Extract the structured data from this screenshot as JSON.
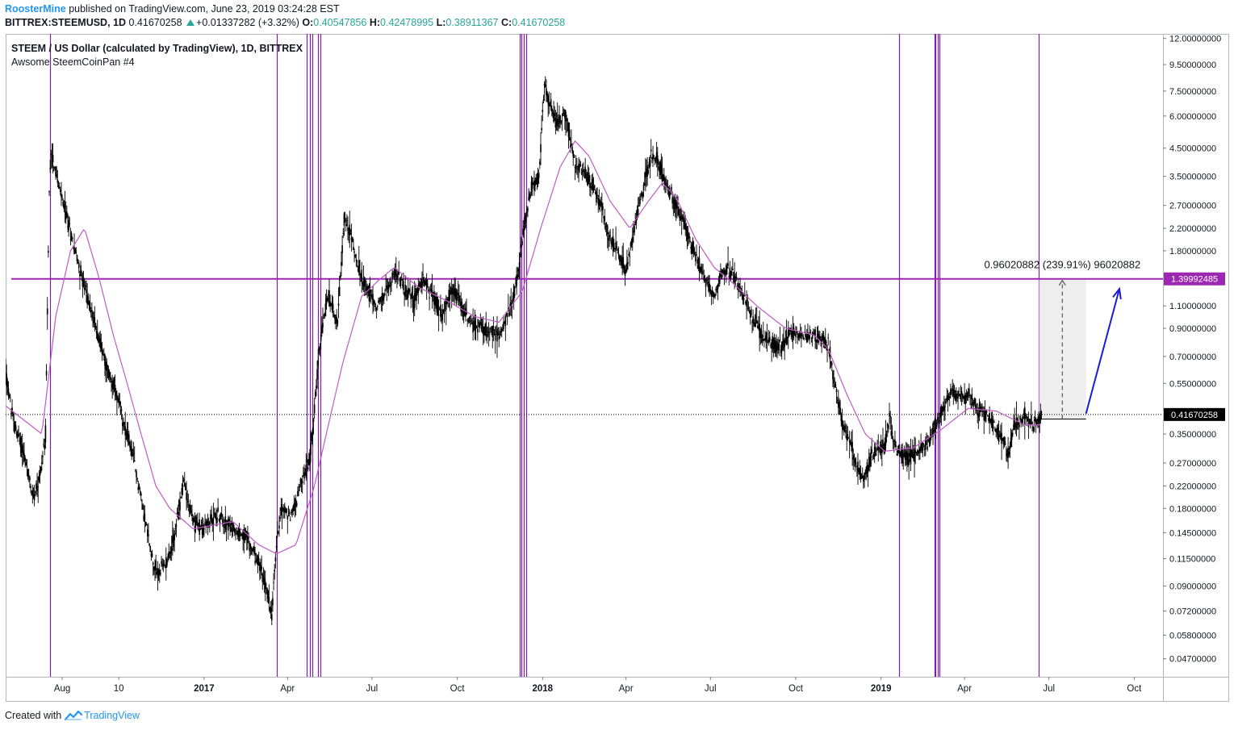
{
  "header": {
    "author": "RoosterMine",
    "published": "published on TradingView.com, June 23, 2019 03:24:28 EST",
    "symbol": "BITTREX:STEEMUSD, 1D",
    "price": "0.41670258",
    "change": "+0.01337282 (+3.32%)",
    "o_label": "O:",
    "o_value": "0.40547856",
    "h_label": "H:",
    "h_value": "0.42478995",
    "l_label": "L:",
    "l_value": "0.38911367",
    "c_label": "C:",
    "c_value": "0.41670258"
  },
  "footer": {
    "created_with": "Created with",
    "brand": "TradingView",
    "logo_icon": "tradingview-logo-icon"
  },
  "colors": {
    "candle": "#000000",
    "ma": "#c25ac7",
    "vline": "#7b1fa2",
    "hline": "#9c27b0",
    "arrow": "#1a1ad8",
    "current": "#000000"
  },
  "chart_data": {
    "type": "candlestick",
    "title": "STEEM / US Dollar (calculated by TradingView), 1D, BITTREX",
    "subtitle": "Awsome SteemCoinPan #4",
    "y_scale": "log",
    "ylim": [
      0.04,
      12.5
    ],
    "xlim": [
      "2016-06-01",
      "2019-11-01"
    ],
    "y_ticks": [
      {
        "value": 12.0,
        "label": "12.00000000"
      },
      {
        "value": 9.5,
        "label": "9.50000000"
      },
      {
        "value": 7.5,
        "label": "7.50000000"
      },
      {
        "value": 6.0,
        "label": "6.00000000"
      },
      {
        "value": 4.5,
        "label": "4.50000000"
      },
      {
        "value": 3.5,
        "label": "3.50000000"
      },
      {
        "value": 2.7,
        "label": "2.70000000"
      },
      {
        "value": 2.2,
        "label": "2.20000000"
      },
      {
        "value": 1.8,
        "label": "1.80000000"
      },
      {
        "value": 1.1,
        "label": "1.10000000"
      },
      {
        "value": 0.9,
        "label": "0.90000000"
      },
      {
        "value": 0.7,
        "label": "0.70000000"
      },
      {
        "value": 0.55,
        "label": "0.55000000"
      },
      {
        "value": 0.35,
        "label": "0.35000000"
      },
      {
        "value": 0.27,
        "label": "0.27000000"
      },
      {
        "value": 0.22,
        "label": "0.22000000"
      },
      {
        "value": 0.18,
        "label": "0.18000000"
      },
      {
        "value": 0.145,
        "label": "0.14500000"
      },
      {
        "value": 0.115,
        "label": "0.11500000"
      },
      {
        "value": 0.09,
        "label": "0.09000000"
      },
      {
        "value": 0.072,
        "label": "0.07200000"
      },
      {
        "value": 0.058,
        "label": "0.05800000"
      },
      {
        "value": 0.047,
        "label": "0.04700000"
      }
    ],
    "x_ticks": [
      {
        "date": "2016-08-01",
        "label": "Aug",
        "bold": false
      },
      {
        "date": "2016-10-01",
        "label": "10",
        "bold": false
      },
      {
        "date": "2017-01-01",
        "label": "2017",
        "bold": true
      },
      {
        "date": "2017-04-01",
        "label": "Apr",
        "bold": false
      },
      {
        "date": "2017-07-01",
        "label": "Jul",
        "bold": false
      },
      {
        "date": "2017-10-01",
        "label": "Oct",
        "bold": false
      },
      {
        "date": "2018-01-01",
        "label": "2018",
        "bold": true
      },
      {
        "date": "2018-04-01",
        "label": "Apr",
        "bold": false
      },
      {
        "date": "2018-07-01",
        "label": "Jul",
        "bold": false
      },
      {
        "date": "2018-10-01",
        "label": "Oct",
        "bold": false
      },
      {
        "date": "2019-01-01",
        "label": "2019",
        "bold": true
      },
      {
        "date": "2019-04-01",
        "label": "Apr",
        "bold": false
      },
      {
        "date": "2019-07-01",
        "label": "Jul",
        "bold": false
      },
      {
        "date": "2019-10-01",
        "label": "Oct",
        "bold": false
      }
    ],
    "price_path": [
      {
        "date": "2016-06-01",
        "value": 0.6
      },
      {
        "date": "2016-06-10",
        "value": 0.38
      },
      {
        "date": "2016-06-20",
        "value": 0.3
      },
      {
        "date": "2016-06-30",
        "value": 0.2
      },
      {
        "date": "2016-07-08",
        "value": 0.24
      },
      {
        "date": "2016-07-14",
        "value": 0.35
      },
      {
        "date": "2016-07-18",
        "value": 3.0
      },
      {
        "date": "2016-07-20",
        "value": 4.5
      },
      {
        "date": "2016-07-28",
        "value": 3.2
      },
      {
        "date": "2016-08-05",
        "value": 2.5
      },
      {
        "date": "2016-08-15",
        "value": 1.8
      },
      {
        "date": "2016-08-25",
        "value": 1.3
      },
      {
        "date": "2016-09-05",
        "value": 0.95
      },
      {
        "date": "2016-09-20",
        "value": 0.6
      },
      {
        "date": "2016-09-25",
        "value": 0.55
      },
      {
        "date": "2016-10-05",
        "value": 0.4
      },
      {
        "date": "2016-10-15",
        "value": 0.3
      },
      {
        "date": "2016-10-25",
        "value": 0.2
      },
      {
        "date": "2016-11-05",
        "value": 0.12
      },
      {
        "date": "2016-11-12",
        "value": 0.1
      },
      {
        "date": "2016-11-20",
        "value": 0.11
      },
      {
        "date": "2016-11-28",
        "value": 0.13
      },
      {
        "date": "2016-12-05",
        "value": 0.18
      },
      {
        "date": "2016-12-10",
        "value": 0.23
      },
      {
        "date": "2016-12-20",
        "value": 0.16
      },
      {
        "date": "2016-12-30",
        "value": 0.15
      },
      {
        "date": "2017-01-15",
        "value": 0.17
      },
      {
        "date": "2017-02-01",
        "value": 0.15
      },
      {
        "date": "2017-02-15",
        "value": 0.14
      },
      {
        "date": "2017-03-01",
        "value": 0.11
      },
      {
        "date": "2017-03-10",
        "value": 0.085
      },
      {
        "date": "2017-03-15",
        "value": 0.07
      },
      {
        "date": "2017-03-20",
        "value": 0.13
      },
      {
        "date": "2017-03-25",
        "value": 0.18
      },
      {
        "date": "2017-04-05",
        "value": 0.17
      },
      {
        "date": "2017-04-15",
        "value": 0.22
      },
      {
        "date": "2017-04-25",
        "value": 0.28
      },
      {
        "date": "2017-05-01",
        "value": 0.5
      },
      {
        "date": "2017-05-08",
        "value": 0.9
      },
      {
        "date": "2017-05-15",
        "value": 1.2
      },
      {
        "date": "2017-05-25",
        "value": 0.95
      },
      {
        "date": "2017-06-01",
        "value": 2.4
      },
      {
        "date": "2017-06-08",
        "value": 2.1
      },
      {
        "date": "2017-06-15",
        "value": 1.6
      },
      {
        "date": "2017-06-25",
        "value": 1.3
      },
      {
        "date": "2017-07-05",
        "value": 1.1
      },
      {
        "date": "2017-07-15",
        "value": 1.2
      },
      {
        "date": "2017-07-25",
        "value": 1.5
      },
      {
        "date": "2017-08-05",
        "value": 1.3
      },
      {
        "date": "2017-08-15",
        "value": 1.15
      },
      {
        "date": "2017-08-25",
        "value": 1.4
      },
      {
        "date": "2017-09-05",
        "value": 1.2
      },
      {
        "date": "2017-09-15",
        "value": 1.0
      },
      {
        "date": "2017-09-25",
        "value": 1.3
      },
      {
        "date": "2017-10-05",
        "value": 1.1
      },
      {
        "date": "2017-10-15",
        "value": 0.95
      },
      {
        "date": "2017-10-25",
        "value": 0.9
      },
      {
        "date": "2017-11-05",
        "value": 0.88
      },
      {
        "date": "2017-11-15",
        "value": 0.85
      },
      {
        "date": "2017-11-25",
        "value": 1.0
      },
      {
        "date": "2017-12-05",
        "value": 1.4
      },
      {
        "date": "2017-12-12",
        "value": 2.2
      },
      {
        "date": "2017-12-20",
        "value": 3.2
      },
      {
        "date": "2017-12-28",
        "value": 3.5
      },
      {
        "date": "2018-01-03",
        "value": 8.0
      },
      {
        "date": "2018-01-10",
        "value": 6.5
      },
      {
        "date": "2018-01-18",
        "value": 5.5
      },
      {
        "date": "2018-01-25",
        "value": 6.2
      },
      {
        "date": "2018-02-05",
        "value": 4.0
      },
      {
        "date": "2018-02-15",
        "value": 3.6
      },
      {
        "date": "2018-02-25",
        "value": 3.2
      },
      {
        "date": "2018-03-05",
        "value": 2.7
      },
      {
        "date": "2018-03-15",
        "value": 2.0
      },
      {
        "date": "2018-03-25",
        "value": 1.7
      },
      {
        "date": "2018-04-01",
        "value": 1.5
      },
      {
        "date": "2018-04-10",
        "value": 2.2
      },
      {
        "date": "2018-04-20",
        "value": 3.2
      },
      {
        "date": "2018-04-28",
        "value": 4.2
      },
      {
        "date": "2018-05-05",
        "value": 4.0
      },
      {
        "date": "2018-05-15",
        "value": 3.2
      },
      {
        "date": "2018-05-25",
        "value": 2.7
      },
      {
        "date": "2018-06-05",
        "value": 2.2
      },
      {
        "date": "2018-06-15",
        "value": 1.7
      },
      {
        "date": "2018-06-25",
        "value": 1.4
      },
      {
        "date": "2018-07-05",
        "value": 1.2
      },
      {
        "date": "2018-07-15",
        "value": 1.55
      },
      {
        "date": "2018-07-25",
        "value": 1.45
      },
      {
        "date": "2018-08-05",
        "value": 1.2
      },
      {
        "date": "2018-08-15",
        "value": 1.0
      },
      {
        "date": "2018-08-25",
        "value": 0.85
      },
      {
        "date": "2018-09-05",
        "value": 0.8
      },
      {
        "date": "2018-09-15",
        "value": 0.75
      },
      {
        "date": "2018-09-25",
        "value": 0.88
      },
      {
        "date": "2018-10-05",
        "value": 0.85
      },
      {
        "date": "2018-10-15",
        "value": 0.82
      },
      {
        "date": "2018-10-25",
        "value": 0.85
      },
      {
        "date": "2018-11-05",
        "value": 0.78
      },
      {
        "date": "2018-11-12",
        "value": 0.55
      },
      {
        "date": "2018-11-20",
        "value": 0.38
      },
      {
        "date": "2018-11-28",
        "value": 0.33
      },
      {
        "date": "2018-12-05",
        "value": 0.27
      },
      {
        "date": "2018-12-12",
        "value": 0.23
      },
      {
        "date": "2018-12-20",
        "value": 0.28
      },
      {
        "date": "2018-12-28",
        "value": 0.3
      },
      {
        "date": "2019-01-05",
        "value": 0.32
      },
      {
        "date": "2019-01-10",
        "value": 0.4
      },
      {
        "date": "2019-01-18",
        "value": 0.3
      },
      {
        "date": "2019-01-28",
        "value": 0.28
      },
      {
        "date": "2019-02-10",
        "value": 0.3
      },
      {
        "date": "2019-02-22",
        "value": 0.33
      },
      {
        "date": "2019-03-01",
        "value": 0.38
      },
      {
        "date": "2019-03-10",
        "value": 0.45
      },
      {
        "date": "2019-03-18",
        "value": 0.52
      },
      {
        "date": "2019-03-28",
        "value": 0.48
      },
      {
        "date": "2019-04-05",
        "value": 0.5
      },
      {
        "date": "2019-04-15",
        "value": 0.43
      },
      {
        "date": "2019-04-25",
        "value": 0.42
      },
      {
        "date": "2019-05-05",
        "value": 0.36
      },
      {
        "date": "2019-05-12",
        "value": 0.33
      },
      {
        "date": "2019-05-18",
        "value": 0.29
      },
      {
        "date": "2019-05-25",
        "value": 0.38
      },
      {
        "date": "2019-06-05",
        "value": 0.41
      },
      {
        "date": "2019-06-15",
        "value": 0.38
      },
      {
        "date": "2019-06-23",
        "value": 0.4167
      }
    ],
    "ma_path": [
      {
        "date": "2016-06-01",
        "value": 0.45
      },
      {
        "date": "2016-07-10",
        "value": 0.35
      },
      {
        "date": "2016-07-25",
        "value": 1.0
      },
      {
        "date": "2016-08-10",
        "value": 1.8
      },
      {
        "date": "2016-08-25",
        "value": 2.2
      },
      {
        "date": "2016-09-10",
        "value": 1.4
      },
      {
        "date": "2016-09-25",
        "value": 0.85
      },
      {
        "date": "2016-10-10",
        "value": 0.55
      },
      {
        "date": "2016-10-25",
        "value": 0.35
      },
      {
        "date": "2016-11-10",
        "value": 0.22
      },
      {
        "date": "2016-11-25",
        "value": 0.18
      },
      {
        "date": "2016-12-20",
        "value": 0.15
      },
      {
        "date": "2017-02-01",
        "value": 0.16
      },
      {
        "date": "2017-03-01",
        "value": 0.13
      },
      {
        "date": "2017-03-20",
        "value": 0.12
      },
      {
        "date": "2017-04-10",
        "value": 0.13
      },
      {
        "date": "2017-04-30",
        "value": 0.22
      },
      {
        "date": "2017-05-15",
        "value": 0.38
      },
      {
        "date": "2017-05-30",
        "value": 0.65
      },
      {
        "date": "2017-06-20",
        "value": 1.2
      },
      {
        "date": "2017-07-10",
        "value": 1.4
      },
      {
        "date": "2017-07-25",
        "value": 1.55
      },
      {
        "date": "2017-08-20",
        "value": 1.3
      },
      {
        "date": "2017-09-20",
        "value": 1.15
      },
      {
        "date": "2017-10-20",
        "value": 1.0
      },
      {
        "date": "2017-11-15",
        "value": 0.95
      },
      {
        "date": "2017-12-10",
        "value": 1.25
      },
      {
        "date": "2017-12-30",
        "value": 2.2
      },
      {
        "date": "2018-01-20",
        "value": 3.8
      },
      {
        "date": "2018-02-05",
        "value": 4.8
      },
      {
        "date": "2018-02-20",
        "value": 4.2
      },
      {
        "date": "2018-03-15",
        "value": 2.8
      },
      {
        "date": "2018-04-05",
        "value": 2.2
      },
      {
        "date": "2018-04-25",
        "value": 2.8
      },
      {
        "date": "2018-05-10",
        "value": 3.3
      },
      {
        "date": "2018-05-25",
        "value": 2.9
      },
      {
        "date": "2018-06-15",
        "value": 2.0
      },
      {
        "date": "2018-07-05",
        "value": 1.55
      },
      {
        "date": "2018-07-25",
        "value": 1.35
      },
      {
        "date": "2018-08-20",
        "value": 1.1
      },
      {
        "date": "2018-09-20",
        "value": 0.9
      },
      {
        "date": "2018-10-20",
        "value": 0.85
      },
      {
        "date": "2018-11-05",
        "value": 0.75
      },
      {
        "date": "2018-11-25",
        "value": 0.5
      },
      {
        "date": "2018-12-15",
        "value": 0.35
      },
      {
        "date": "2019-01-05",
        "value": 0.3
      },
      {
        "date": "2019-02-05",
        "value": 0.31
      },
      {
        "date": "2019-03-05",
        "value": 0.36
      },
      {
        "date": "2019-04-05",
        "value": 0.44
      },
      {
        "date": "2019-05-05",
        "value": 0.43
      },
      {
        "date": "2019-06-05",
        "value": 0.38
      },
      {
        "date": "2019-06-23",
        "value": 0.38
      }
    ],
    "vertical_lines": [
      "2016-07-19",
      "2017-03-20",
      "2017-04-22",
      "2017-04-25",
      "2017-04-28",
      "2017-05-04",
      "2017-05-06",
      "2017-12-07",
      "2017-12-09",
      "2017-12-12",
      "2017-12-14",
      "2019-01-20",
      "2019-02-28",
      "2019-03-01",
      "2019-03-03",
      "2019-03-05",
      "2019-06-20"
    ],
    "horizontal_line": {
      "value": 1.39992485,
      "label": "1.39992485"
    },
    "current_price": {
      "value": 0.41670258,
      "label": "0.41670258"
    },
    "measure": {
      "from_date": "2019-06-20",
      "to_date": "2019-08-10",
      "low": 0.4,
      "high": 1.39992485,
      "label": "0.96020882 (239.91%) 96020882"
    },
    "projection_arrow": {
      "from_date": "2019-08-10",
      "from_value": 0.42,
      "to_date": "2019-09-15",
      "to_value": 1.28
    }
  }
}
